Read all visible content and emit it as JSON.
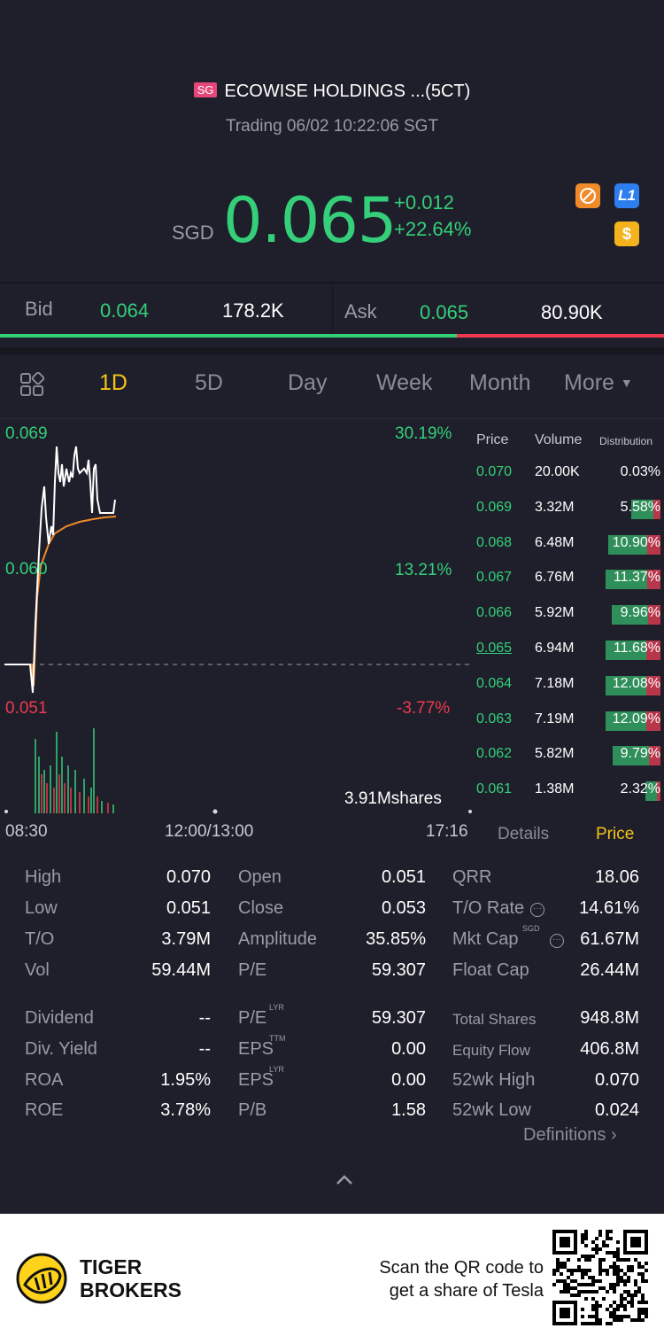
{
  "header": {
    "market_badge": "SG",
    "title": "ECOWISE HOLDINGS ...(5CT)",
    "subtitle": "Trading 06/02 10:22:06 SGT",
    "currency": "SGD",
    "price": "0.065",
    "change": "+0.012",
    "change_pct": "+22.64%",
    "icon_l1": "L1",
    "icon_dollar": "$"
  },
  "quote": {
    "bid_label": "Bid",
    "bid_price": "0.064",
    "bid_size": "178.2K",
    "ask_label": "Ask",
    "ask_price": "0.065",
    "ask_size": "80.90K"
  },
  "tabs": [
    "1D",
    "5D",
    "Day",
    "Week",
    "Month",
    "More"
  ],
  "chart": {
    "y_top": "0.069",
    "y_mid": "0.060",
    "y_bot": "0.051",
    "pct_top": "30.19%",
    "pct_mid": "13.21%",
    "pct_bot": "-3.77%",
    "volume_total": "3.91Mshares",
    "x_start": "08:30",
    "x_mid": "12:00/13:00",
    "x_end": "17:16"
  },
  "orderbook": {
    "headers": {
      "price": "Price",
      "volume": "Volume",
      "distribution": "Distribution"
    },
    "rows": [
      {
        "price": "0.070",
        "volume": "20.00K",
        "dist": "0.03%"
      },
      {
        "price": "0.069",
        "volume": "3.32M",
        "dist": "5.58%"
      },
      {
        "price": "0.068",
        "volume": "6.48M",
        "dist": "10.90%"
      },
      {
        "price": "0.067",
        "volume": "6.76M",
        "dist": "11.37%"
      },
      {
        "price": "0.066",
        "volume": "5.92M",
        "dist": "9.96%"
      },
      {
        "price": "0.065",
        "volume": "6.94M",
        "dist": "11.68%"
      },
      {
        "price": "0.064",
        "volume": "7.18M",
        "dist": "12.08%"
      },
      {
        "price": "0.063",
        "volume": "7.19M",
        "dist": "12.09%"
      },
      {
        "price": "0.062",
        "volume": "5.82M",
        "dist": "9.79%"
      },
      {
        "price": "0.061",
        "volume": "1.38M",
        "dist": "2.32%"
      }
    ],
    "details_tab": "Details",
    "price_tab": "Price"
  },
  "stats": {
    "col1": [
      {
        "label": "High",
        "value": "0.070"
      },
      {
        "label": "Low",
        "value": "0.051"
      },
      {
        "label": "T/O",
        "value": "3.79M"
      },
      {
        "label": "Vol",
        "value": "59.44M"
      },
      {
        "label": "Dividend",
        "value": "--"
      },
      {
        "label": "Div. Yield",
        "value": "--"
      },
      {
        "label": "ROA",
        "value": "1.95%"
      },
      {
        "label": "ROE",
        "value": "3.78%"
      }
    ],
    "col2": [
      {
        "label": "Open",
        "value": "0.051"
      },
      {
        "label": "Close",
        "value": "0.053"
      },
      {
        "label": "Amplitude",
        "value": "35.85%"
      },
      {
        "label": "P/E",
        "value": "59.307"
      },
      {
        "label": "P/E",
        "sup": "LYR",
        "value": "59.307"
      },
      {
        "label": "EPS",
        "sup": "TTM",
        "value": "0.00"
      },
      {
        "label": "EPS",
        "sup": "LYR",
        "value": "0.00"
      },
      {
        "label": "P/B",
        "value": "1.58"
      }
    ],
    "col3": [
      {
        "label": "QRR",
        "value": "18.06"
      },
      {
        "label": "T/O Rate",
        "value": "14.61%"
      },
      {
        "label": "Mkt Cap",
        "sup": "SGD",
        "value": "61.67M"
      },
      {
        "label": "Float Cap",
        "value": "26.44M"
      },
      {
        "label": "Total Shares",
        "value": "948.8M"
      },
      {
        "label": "Equity Flow",
        "value": "406.8M"
      },
      {
        "label": "52wk High",
        "value": "0.070"
      },
      {
        "label": "52wk Low",
        "value": "0.024"
      }
    ],
    "definitions": "Definitions"
  },
  "footer": {
    "brand_line1": "TIGER",
    "brand_line2": "BROKERS",
    "cta_line1": "Scan the QR code to",
    "cta_line2": "get a share of Tesla"
  },
  "colors": {
    "up": "#35cf7a",
    "down": "#f0384f",
    "accent": "#f4c318",
    "background": "#1e1f2a"
  }
}
